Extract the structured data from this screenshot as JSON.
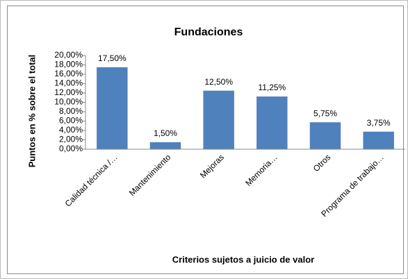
{
  "chart_data": {
    "type": "bar",
    "title": "Fundaciones",
    "y_label": "Puntos en % sobre el total",
    "x_label": "Criterios sujetos a juicio de valor",
    "categories": [
      "Calidad técnica /…",
      "Mantenimiento",
      "Mejoras",
      "Memoria…",
      "Otros",
      "Programa de trabajo…"
    ],
    "values": [
      17.5,
      1.5,
      12.5,
      11.25,
      5.75,
      3.75
    ],
    "value_labels": [
      "17,50%",
      "1,50%",
      "12,50%",
      "11,25%",
      "5,75%",
      "3,75%"
    ],
    "color": "#4f81bd",
    "ylim": [
      0,
      20
    ],
    "yticks": [
      {
        "value": 0,
        "label": "0,00%"
      },
      {
        "value": 2,
        "label": "2,00%"
      },
      {
        "value": 4,
        "label": "4,00%"
      },
      {
        "value": 6,
        "label": "6,00%"
      },
      {
        "value": 8,
        "label": "8,00%"
      },
      {
        "value": 10,
        "label": "10,00%"
      },
      {
        "value": 12,
        "label": "12,00%"
      },
      {
        "value": 14,
        "label": "14,00%"
      },
      {
        "value": 16,
        "label": "16,00%"
      },
      {
        "value": 18,
        "label": "18,00%"
      },
      {
        "value": 20,
        "label": "20,00%"
      }
    ]
  }
}
